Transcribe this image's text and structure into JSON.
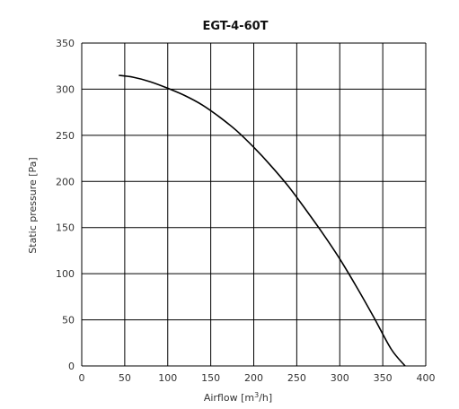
{
  "chart_data": {
    "type": "line",
    "title": "EGT-4-60T",
    "xlabel": "Airflow [m3/h]",
    "xlabel_parts": {
      "pre": "Airflow [m",
      "sup": "3",
      "post": "/h]"
    },
    "ylabel": "Static pressure [Pa]",
    "xlim": [
      0,
      400
    ],
    "ylim": [
      0,
      350
    ],
    "xticks": [
      0,
      50,
      100,
      150,
      200,
      250,
      300,
      350,
      400
    ],
    "yticks": [
      0,
      50,
      100,
      150,
      200,
      250,
      300,
      350
    ],
    "grid": true,
    "legend": "none",
    "series": [
      {
        "x": [
          43,
          60,
          80,
          100,
          120,
          140,
          160,
          180,
          200,
          220,
          240,
          260,
          280,
          300,
          320,
          340,
          360,
          376
        ],
        "y": [
          315,
          313,
          308,
          301,
          293,
          283,
          270,
          255,
          237,
          217,
          195,
          170,
          144,
          116,
          85,
          52,
          18,
          0
        ]
      }
    ]
  }
}
